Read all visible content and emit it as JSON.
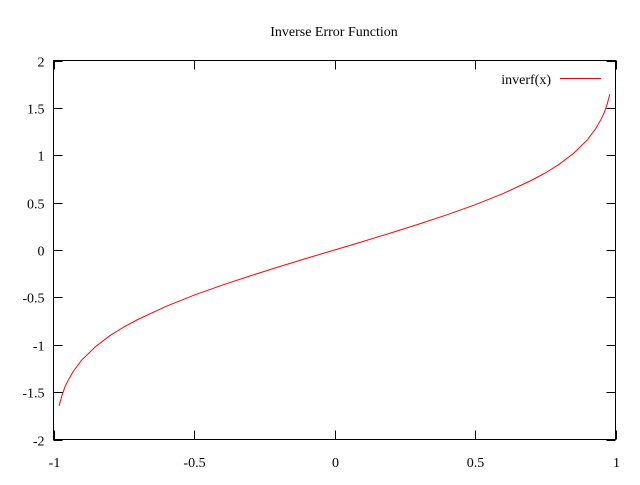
{
  "chart_data": {
    "type": "line",
    "title": "Inverse Error Function",
    "xlabel": "",
    "ylabel": "",
    "xlim": [
      -1,
      1
    ],
    "ylim": [
      -2,
      2
    ],
    "grid": false,
    "legend_position": "top-right",
    "x_ticks": [
      "-1",
      "-0.5",
      "0",
      "0.5",
      "1"
    ],
    "x_tick_values": [
      -1,
      -0.5,
      0,
      0.5,
      1
    ],
    "y_ticks": [
      "2",
      "1.5",
      "1",
      "0.5",
      "0",
      "-0.5",
      "-1",
      "-1.5",
      "-2"
    ],
    "y_tick_values": [
      2,
      1.5,
      1,
      0.5,
      0,
      -0.5,
      -1,
      -1.5,
      -2
    ],
    "series": [
      {
        "name": "inverf(x)",
        "color": "#ff0000",
        "x": [
          -0.98,
          -0.97,
          -0.96,
          -0.95,
          -0.93,
          -0.9,
          -0.85,
          -0.8,
          -0.75,
          -0.7,
          -0.6,
          -0.5,
          -0.4,
          -0.3,
          -0.2,
          -0.1,
          0,
          0.1,
          0.2,
          0.3,
          0.4,
          0.5,
          0.6,
          0.7,
          0.75,
          0.8,
          0.85,
          0.9,
          0.93,
          0.95,
          0.96,
          0.97,
          0.98
        ],
        "y": [
          -1.645,
          -1.538,
          -1.452,
          -1.386,
          -1.282,
          -1.163,
          -1.018,
          -0.906,
          -0.813,
          -0.733,
          -0.595,
          -0.477,
          -0.371,
          -0.273,
          -0.179,
          -0.089,
          0,
          0.089,
          0.179,
          0.273,
          0.371,
          0.477,
          0.595,
          0.733,
          0.813,
          0.906,
          1.018,
          1.163,
          1.282,
          1.386,
          1.452,
          1.538,
          1.645
        ]
      }
    ]
  }
}
